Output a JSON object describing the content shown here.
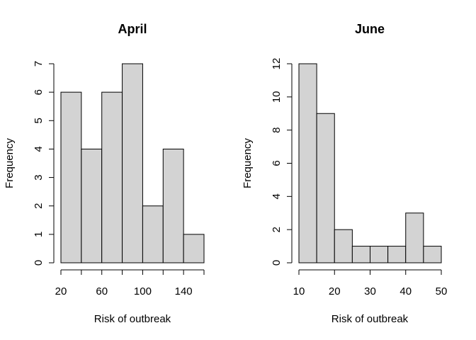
{
  "chart_data": [
    {
      "type": "bar",
      "title": "April",
      "xlabel": "Risk of outbreak",
      "ylabel": "Frequency",
      "bins": [
        [
          20,
          40
        ],
        [
          40,
          60
        ],
        [
          60,
          80
        ],
        [
          80,
          100
        ],
        [
          100,
          120
        ],
        [
          120,
          140
        ],
        [
          140,
          160
        ]
      ],
      "values": [
        6,
        4,
        6,
        7,
        2,
        4,
        1
      ],
      "xlim": [
        20,
        160
      ],
      "ylim": [
        0,
        7
      ],
      "x_ticks": [
        20,
        40,
        60,
        80,
        100,
        120,
        140,
        160
      ],
      "x_tick_labels": [
        "20",
        "",
        "60",
        "",
        "100",
        "",
        "140",
        ""
      ],
      "y_ticks": [
        0,
        1,
        2,
        3,
        4,
        5,
        6,
        7
      ],
      "y_tick_labels": [
        "0",
        "1",
        "2",
        "3",
        "4",
        "5",
        "6",
        "7"
      ],
      "bar_color": "#d3d3d3",
      "grid": false
    },
    {
      "type": "bar",
      "title": "June",
      "xlabel": "Risk of outbreak",
      "ylabel": "Frequency",
      "bins": [
        [
          10,
          15
        ],
        [
          15,
          20
        ],
        [
          20,
          25
        ],
        [
          25,
          30
        ],
        [
          30,
          35
        ],
        [
          35,
          40
        ],
        [
          40,
          45
        ],
        [
          45,
          50
        ]
      ],
      "values": [
        12,
        9,
        2,
        1,
        1,
        1,
        3,
        1
      ],
      "xlim": [
        10,
        50
      ],
      "ylim": [
        0,
        12
      ],
      "x_ticks": [
        10,
        20,
        30,
        40,
        50
      ],
      "x_tick_labels": [
        "10",
        "20",
        "30",
        "40",
        "50"
      ],
      "y_ticks": [
        0,
        2,
        4,
        6,
        8,
        10,
        12
      ],
      "y_tick_labels": [
        "0",
        "2",
        "4",
        "6",
        "8",
        "10",
        "12"
      ],
      "bar_color": "#d3d3d3",
      "grid": false
    }
  ]
}
